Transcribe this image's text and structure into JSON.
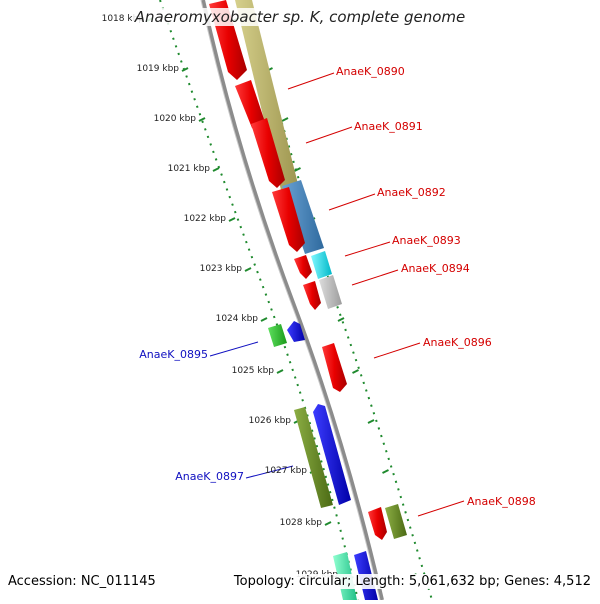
{
  "title": "Anaeromyxobacter sp. K, complete genome",
  "footer": {
    "accession": "Accession: NC_011145",
    "summary": "Topology: circular; Length: 5,061,632 bp; Genes: 4,512"
  },
  "colors": {
    "backbone": "#8c8c8c",
    "ruler": "#1f8a2e",
    "label_forward": "#d40000",
    "label_reverse": "#1010c0",
    "red": "#e80000",
    "khaki": "#bdb66c",
    "steelblue": "#4a82b4",
    "cyan": "#00e6f0",
    "gray": "#c0c0c0",
    "green": "#30c030",
    "blue": "#0000e6",
    "olive": "#6b8e23",
    "aquamarine": "#40f0a8"
  },
  "ruler_ticks": [
    {
      "label": "1018 kbp",
      "kbp": 1018
    },
    {
      "label": "1019 kbp",
      "kbp": 1019
    },
    {
      "label": "1020 kbp",
      "kbp": 1020
    },
    {
      "label": "1021 kbp",
      "kbp": 1021
    },
    {
      "label": "1022 kbp",
      "kbp": 1022
    },
    {
      "label": "1023 kbp",
      "kbp": 1023
    },
    {
      "label": "1024 kbp",
      "kbp": 1024
    },
    {
      "label": "1025 kbp",
      "kbp": 1025
    },
    {
      "label": "1026 kbp",
      "kbp": 1026
    },
    {
      "label": "1027 kbp",
      "kbp": 1027
    },
    {
      "label": "1028 kbp",
      "kbp": 1028
    },
    {
      "label": "1029 kbp",
      "kbp": 1029
    }
  ],
  "genes": [
    {
      "name": "AnaeK_0890",
      "strand": "forward"
    },
    {
      "name": "AnaeK_0891",
      "strand": "forward"
    },
    {
      "name": "AnaeK_0892",
      "strand": "forward"
    },
    {
      "name": "AnaeK_0893",
      "strand": "forward"
    },
    {
      "name": "AnaeK_0894",
      "strand": "forward"
    },
    {
      "name": "AnaeK_0895",
      "strand": "reverse"
    },
    {
      "name": "AnaeK_0896",
      "strand": "forward"
    },
    {
      "name": "AnaeK_0897",
      "strand": "reverse"
    },
    {
      "name": "AnaeK_0898",
      "strand": "forward"
    }
  ]
}
